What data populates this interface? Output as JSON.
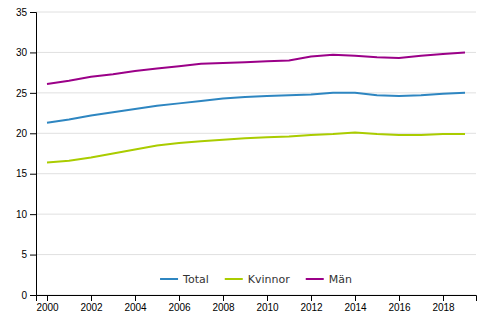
{
  "chart_data": {
    "type": "line",
    "x": [
      2000,
      2001,
      2002,
      2003,
      2004,
      2005,
      2006,
      2007,
      2008,
      2009,
      2010,
      2011,
      2012,
      2013,
      2014,
      2015,
      2016,
      2017,
      2018,
      2019
    ],
    "series": [
      {
        "name": "Total",
        "color": "#2E86C1",
        "values": [
          21.3,
          21.7,
          22.2,
          22.6,
          23.0,
          23.4,
          23.7,
          24.0,
          24.3,
          24.5,
          24.6,
          24.7,
          24.8,
          25.0,
          25.0,
          24.7,
          24.6,
          24.7,
          24.9,
          25.0
        ]
      },
      {
        "name": "Kvinnor",
        "color": "#AACC00",
        "values": [
          16.4,
          16.6,
          17.0,
          17.5,
          18.0,
          18.5,
          18.8,
          19.0,
          19.2,
          19.4,
          19.5,
          19.6,
          19.8,
          19.9,
          20.1,
          19.9,
          19.8,
          19.8,
          19.9,
          19.9
        ]
      },
      {
        "name": "Män",
        "color": "#9B0088",
        "values": [
          26.1,
          26.5,
          27.0,
          27.3,
          27.7,
          28.0,
          28.3,
          28.6,
          28.7,
          28.8,
          28.9,
          29.0,
          29.5,
          29.7,
          29.6,
          29.4,
          29.3,
          29.6,
          29.8,
          30.0
        ]
      }
    ],
    "xlim": [
      1999.5,
      2019.5
    ],
    "xticks": [
      2000,
      2002,
      2004,
      2006,
      2008,
      2010,
      2012,
      2014,
      2016,
      2018
    ],
    "ylim": [
      0,
      35
    ],
    "yticks": [
      0,
      5,
      10,
      15,
      20,
      25,
      30,
      35
    ],
    "grid": true,
    "legend": "bottom"
  }
}
